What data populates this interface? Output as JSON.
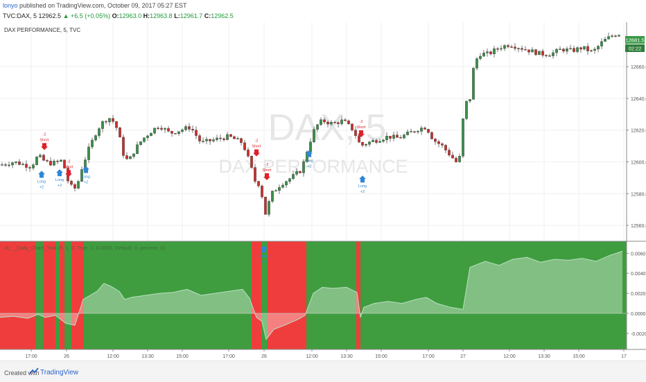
{
  "header": {
    "user": "lonyo",
    "published": "published on TradingView.com, October 09, 2017 05:27 EST",
    "symbol": "TVC:DAX, 5",
    "last": "12962.5",
    "change": "+6.5 (+0.05%)",
    "o_label": "O:",
    "o_val": "12963.0",
    "h_label": "H:",
    "h_val": "12963.8",
    "l_label": "L:",
    "l_val": "12961.7",
    "c_label": "C:",
    "c_val": "12962.5"
  },
  "main_chart": {
    "title": "DAX PERFORMANCE, 5, TVC",
    "watermark_symbol": "DAX, 5",
    "watermark_name": "DAX PERFORMANCE",
    "price_label": "12681.5",
    "time_label": "02:22"
  },
  "indicator": {
    "title": "ck_ _Daily_Chart_Triol (5, 1, 0, True, 1, 0.0005, Default, 0, percent, 0)"
  },
  "signals": {
    "short_label": "Short",
    "long_label": "Long",
    "short_qty": "-2",
    "long_qty": "+2"
  },
  "colors": {
    "up": "#3b8f4a",
    "down": "#c9302c",
    "long_zone": "#3f9d3f",
    "short_zone": "#ef3d3d",
    "equity": "#c8d8c8",
    "arrow_up": "#2f86d6",
    "arrow_down": "#e0202a",
    "price_tag": "#3a9a46"
  },
  "chart_data": [
    {
      "type": "candlestick",
      "y_ticks": [
        "12660.0",
        "12640.0",
        "12620.0",
        "12600.0",
        "12580.0",
        "12560.0"
      ],
      "y_tick_values": [
        12660,
        12640,
        12620,
        12600,
        12580,
        12560
      ],
      "ylim": [
        12550,
        12688
      ],
      "x_ticks": [
        "17:00",
        "26",
        "12:00",
        "13:30",
        "15:00",
        "17:00",
        "26",
        "12:00",
        "13:30",
        "15:00",
        "17:00",
        "27",
        "12:00",
        "13:30",
        "15:00",
        "17"
      ],
      "close_path": [
        [
          0,
          12598
        ],
        [
          20,
          12600
        ],
        [
          45,
          12597
        ],
        [
          55,
          12604
        ],
        [
          65,
          12600
        ],
        [
          75,
          12599
        ],
        [
          90,
          12601
        ],
        [
          100,
          12585
        ],
        [
          110,
          12583
        ],
        [
          118,
          12596
        ],
        [
          128,
          12608
        ],
        [
          140,
          12620
        ],
        [
          150,
          12626
        ],
        [
          160,
          12628
        ],
        [
          170,
          12620
        ],
        [
          178,
          12605
        ],
        [
          185,
          12600
        ],
        [
          195,
          12608
        ],
        [
          205,
          12614
        ],
        [
          220,
          12620
        ],
        [
          230,
          12623
        ],
        [
          245,
          12618
        ],
        [
          260,
          12620
        ],
        [
          275,
          12622
        ],
        [
          290,
          12612
        ],
        [
          310,
          12614
        ],
        [
          330,
          12616
        ],
        [
          350,
          12612
        ],
        [
          360,
          12600
        ],
        [
          368,
          12588
        ],
        [
          376,
          12585
        ],
        [
          382,
          12566
        ],
        [
          392,
          12580
        ],
        [
          405,
          12586
        ],
        [
          420,
          12590
        ],
        [
          435,
          12595
        ],
        [
          445,
          12610
        ],
        [
          455,
          12622
        ],
        [
          465,
          12626
        ],
        [
          480,
          12624
        ],
        [
          495,
          12626
        ],
        [
          510,
          12620
        ],
        [
          520,
          12610
        ],
        [
          530,
          12612
        ],
        [
          545,
          12614
        ],
        [
          560,
          12616
        ],
        [
          575,
          12615
        ],
        [
          590,
          12618
        ],
        [
          605,
          12621
        ],
        [
          615,
          12622
        ],
        [
          625,
          12614
        ],
        [
          638,
          12610
        ],
        [
          650,
          12604
        ],
        [
          662,
          12598
        ],
        [
          670,
          12636
        ],
        [
          678,
          12640
        ],
        [
          684,
          12662
        ],
        [
          692,
          12668
        ],
        [
          705,
          12668
        ],
        [
          720,
          12672
        ],
        [
          735,
          12674
        ],
        [
          750,
          12672
        ],
        [
          765,
          12670
        ],
        [
          780,
          12668
        ],
        [
          795,
          12668
        ],
        [
          810,
          12671
        ],
        [
          825,
          12670
        ],
        [
          840,
          12672
        ],
        [
          855,
          12669
        ],
        [
          870,
          12676
        ],
        [
          885,
          12680
        ],
        [
          898,
          12681
        ]
      ]
    },
    {
      "type": "area",
      "y_ticks": [
        "0.0060",
        "0.0040",
        "0.0020",
        "0.0000",
        "-0.0020"
      ],
      "y_tick_values": [
        0.006,
        0.004,
        0.002,
        0.0,
        -0.002
      ],
      "ylim": [
        -0.0036,
        0.0072
      ],
      "equity_path": [
        [
          0,
          -0.0004
        ],
        [
          20,
          -0.0003
        ],
        [
          40,
          -0.0005
        ],
        [
          55,
          -0.0001
        ],
        [
          65,
          -0.0004
        ],
        [
          80,
          -0.0002
        ],
        [
          95,
          -0.001
        ],
        [
          108,
          -0.0012
        ],
        [
          120,
          0.0014
        ],
        [
          130,
          0.0018
        ],
        [
          140,
          0.0022
        ],
        [
          150,
          0.003
        ],
        [
          160,
          0.0027
        ],
        [
          172,
          0.0022
        ],
        [
          180,
          0.0014
        ],
        [
          190,
          0.0016
        ],
        [
          210,
          0.0018
        ],
        [
          230,
          0.002
        ],
        [
          250,
          0.0021
        ],
        [
          270,
          0.0024
        ],
        [
          290,
          0.0018
        ],
        [
          310,
          0.002
        ],
        [
          330,
          0.0022
        ],
        [
          350,
          0.0024
        ],
        [
          360,
          0.0015
        ],
        [
          370,
          -0.0004
        ],
        [
          378,
          -0.0008
        ],
        [
          384,
          -0.0026
        ],
        [
          395,
          -0.0016
        ],
        [
          410,
          -0.0012
        ],
        [
          430,
          -0.0006
        ],
        [
          440,
          -0.0002
        ],
        [
          452,
          0.002
        ],
        [
          465,
          0.0026
        ],
        [
          480,
          0.0025
        ],
        [
          500,
          0.0026
        ],
        [
          515,
          0.0021
        ],
        [
          520,
          -0.0004
        ],
        [
          525,
          0.0006
        ],
        [
          540,
          0.001
        ],
        [
          560,
          0.0012
        ],
        [
          580,
          0.001
        ],
        [
          600,
          0.0014
        ],
        [
          615,
          0.0016
        ],
        [
          630,
          0.001
        ],
        [
          650,
          0.0006
        ],
        [
          668,
          0.0004
        ],
        [
          678,
          0.0046
        ],
        [
          700,
          0.0052
        ],
        [
          720,
          0.0048
        ],
        [
          740,
          0.0054
        ],
        [
          760,
          0.0056
        ],
        [
          780,
          0.0051
        ],
        [
          800,
          0.0054
        ],
        [
          820,
          0.0053
        ],
        [
          840,
          0.0055
        ],
        [
          860,
          0.0052
        ],
        [
          880,
          0.0058
        ],
        [
          898,
          0.0062
        ]
      ],
      "short_zones_x": [
        [
          0,
          52
        ],
        [
          62,
          80
        ],
        [
          86,
          93
        ],
        [
          103,
          121
        ],
        [
          363,
          377
        ],
        [
          386,
          442
        ],
        [
          514,
          520
        ]
      ]
    }
  ]
}
